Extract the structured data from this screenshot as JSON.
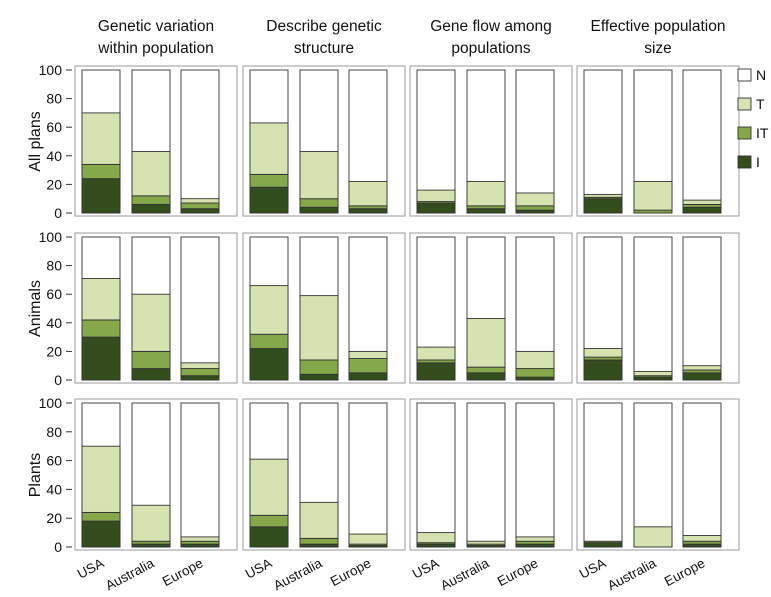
{
  "chart_data": {
    "type": "bar",
    "stacked": true,
    "column_titles": [
      [
        "Genetic variation",
        "within population"
      ],
      [
        "Describe genetic",
        "structure"
      ],
      [
        "Gene flow among",
        "populations"
      ],
      [
        "Effective population",
        "size"
      ]
    ],
    "row_labels": [
      "All plans",
      "Animals",
      "Plants"
    ],
    "categories": [
      "USA",
      "Australia",
      "Europe"
    ],
    "ylim": [
      0,
      100
    ],
    "yticks": [
      "0",
      "20",
      "40",
      "60",
      "80",
      "100"
    ],
    "legend": [
      {
        "key": "N",
        "label": "N",
        "color": "#ffffff"
      },
      {
        "key": "T",
        "label": "T",
        "color": "#d6e3b0"
      },
      {
        "key": "IT",
        "label": "IT",
        "color": "#84a84a"
      },
      {
        "key": "I",
        "label": "I",
        "color": "#334d1c"
      }
    ],
    "panels": [
      {
        "row": "All plans",
        "column": "Genetic variation within population",
        "bars": {
          "USA": {
            "I": 24,
            "IT": 10,
            "T": 36
          },
          "Australia": {
            "I": 6,
            "IT": 6,
            "T": 31
          },
          "Europe": {
            "I": 3,
            "IT": 4,
            "T": 3
          }
        }
      },
      {
        "row": "All plans",
        "column": "Describe genetic structure",
        "bars": {
          "USA": {
            "I": 18,
            "IT": 9,
            "T": 36
          },
          "Australia": {
            "I": 4,
            "IT": 6,
            "T": 33
          },
          "Europe": {
            "I": 3,
            "IT": 2,
            "T": 17
          }
        }
      },
      {
        "row": "All plans",
        "column": "Gene flow among populations",
        "bars": {
          "USA": {
            "I": 7,
            "IT": 1,
            "T": 8
          },
          "Australia": {
            "I": 3,
            "IT": 2,
            "T": 17
          },
          "Europe": {
            "I": 2,
            "IT": 3,
            "T": 9
          }
        }
      },
      {
        "row": "All plans",
        "column": "Effective population size",
        "bars": {
          "USA": {
            "I": 10,
            "IT": 1,
            "T": 2
          },
          "Australia": {
            "I": 0,
            "IT": 2,
            "T": 20
          },
          "Europe": {
            "I": 4,
            "IT": 2,
            "T": 3
          }
        }
      },
      {
        "row": "Animals",
        "column": "Genetic variation within population",
        "bars": {
          "USA": {
            "I": 30,
            "IT": 12,
            "T": 29
          },
          "Australia": {
            "I": 8,
            "IT": 12,
            "T": 40
          },
          "Europe": {
            "I": 3,
            "IT": 5,
            "T": 4
          }
        }
      },
      {
        "row": "Animals",
        "column": "Describe genetic structure",
        "bars": {
          "USA": {
            "I": 22,
            "IT": 10,
            "T": 34
          },
          "Australia": {
            "I": 4,
            "IT": 10,
            "T": 45
          },
          "Europe": {
            "I": 5,
            "IT": 10,
            "T": 5
          }
        }
      },
      {
        "row": "Animals",
        "column": "Gene flow among populations",
        "bars": {
          "USA": {
            "I": 12,
            "IT": 2,
            "T": 9
          },
          "Australia": {
            "I": 5,
            "IT": 4,
            "T": 34
          },
          "Europe": {
            "I": 2,
            "IT": 6,
            "T": 12
          }
        }
      },
      {
        "row": "Animals",
        "column": "Effective population size",
        "bars": {
          "USA": {
            "I": 14,
            "IT": 2,
            "T": 6
          },
          "Australia": {
            "I": 2,
            "IT": 1,
            "T": 3
          },
          "Europe": {
            "I": 5,
            "IT": 2,
            "T": 3
          }
        }
      },
      {
        "row": "Plants",
        "column": "Genetic variation within population",
        "bars": {
          "USA": {
            "I": 18,
            "IT": 6,
            "T": 46
          },
          "Australia": {
            "I": 2,
            "IT": 2,
            "T": 25
          },
          "Europe": {
            "I": 2,
            "IT": 2,
            "T": 3
          }
        }
      },
      {
        "row": "Plants",
        "column": "Describe genetic structure",
        "bars": {
          "USA": {
            "I": 14,
            "IT": 8,
            "T": 39
          },
          "Australia": {
            "I": 2,
            "IT": 4,
            "T": 25
          },
          "Europe": {
            "I": 1,
            "IT": 1,
            "T": 7
          }
        }
      },
      {
        "row": "Plants",
        "column": "Gene flow among populations",
        "bars": {
          "USA": {
            "I": 2,
            "IT": 1,
            "T": 7
          },
          "Australia": {
            "I": 1,
            "IT": 1,
            "T": 2
          },
          "Europe": {
            "I": 2,
            "IT": 2,
            "T": 3
          }
        }
      },
      {
        "row": "Plants",
        "column": "Effective population size",
        "bars": {
          "USA": {
            "I": 3,
            "IT": 1,
            "T": 0
          },
          "Australia": {
            "I": 0,
            "IT": 0,
            "T": 14
          },
          "Europe": {
            "I": 2,
            "IT": 2,
            "T": 4
          }
        }
      }
    ]
  }
}
